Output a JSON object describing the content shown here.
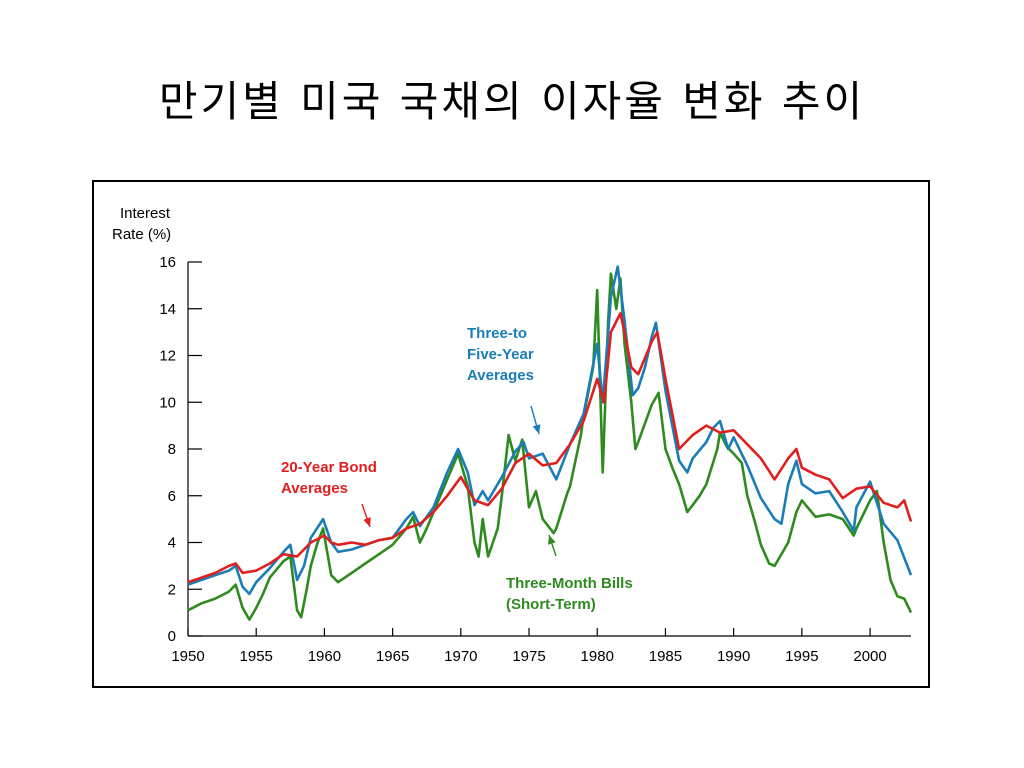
{
  "title": "만기별 미국 국채의 이자율 변화 추이",
  "chart_data": {
    "type": "line",
    "ylabel_lines": [
      "Interest",
      "Rate (%)"
    ],
    "xlabel": "",
    "xlim": [
      1950,
      2003
    ],
    "ylim": [
      0,
      16
    ],
    "x_ticks": [
      1950,
      1955,
      1960,
      1965,
      1970,
      1975,
      1980,
      1985,
      1990,
      1995,
      2000
    ],
    "y_ticks": [
      0,
      2,
      4,
      6,
      8,
      10,
      12,
      14,
      16
    ],
    "grid": false,
    "legend": "inline annotations",
    "series": [
      {
        "name": "Three-Month Bills (Short-Term)",
        "color": "#2e8b1e",
        "annotation_lines": [
          "Three-Month Bills",
          "(Short-Term)"
        ],
        "points": [
          [
            1950,
            1.1
          ],
          [
            1951,
            1.4
          ],
          [
            1952,
            1.6
          ],
          [
            1953,
            1.9
          ],
          [
            1953.5,
            2.2
          ],
          [
            1954,
            1.2
          ],
          [
            1954.5,
            0.7
          ],
          [
            1955,
            1.2
          ],
          [
            1955.5,
            1.8
          ],
          [
            1956,
            2.5
          ],
          [
            1957,
            3.2
          ],
          [
            1957.5,
            3.4
          ],
          [
            1958,
            1.1
          ],
          [
            1958.3,
            0.8
          ],
          [
            1958.7,
            2.0
          ],
          [
            1959,
            3.0
          ],
          [
            1959.5,
            4.0
          ],
          [
            1959.9,
            4.6
          ],
          [
            1960.5,
            2.6
          ],
          [
            1961,
            2.3
          ],
          [
            1962,
            2.7
          ],
          [
            1963,
            3.1
          ],
          [
            1964,
            3.5
          ],
          [
            1965,
            3.9
          ],
          [
            1966,
            4.6
          ],
          [
            1966.5,
            5.1
          ],
          [
            1967,
            4.0
          ],
          [
            1967.5,
            4.6
          ],
          [
            1968,
            5.3
          ],
          [
            1969,
            6.7
          ],
          [
            1969.8,
            7.8
          ],
          [
            1970.5,
            6.4
          ],
          [
            1971,
            4.0
          ],
          [
            1971.3,
            3.4
          ],
          [
            1971.6,
            5.0
          ],
          [
            1972,
            3.4
          ],
          [
            1972.7,
            4.6
          ],
          [
            1973,
            6.0
          ],
          [
            1973.5,
            8.6
          ],
          [
            1974,
            7.5
          ],
          [
            1974.5,
            8.4
          ],
          [
            1975,
            5.5
          ],
          [
            1975.5,
            6.2
          ],
          [
            1976,
            5.0
          ],
          [
            1976.8,
            4.4
          ],
          [
            1977,
            4.6
          ],
          [
            1977.8,
            6.1
          ],
          [
            1978,
            6.4
          ],
          [
            1978.8,
            8.6
          ],
          [
            1979,
            9.4
          ],
          [
            1979.7,
            11.5
          ],
          [
            1980,
            14.8
          ],
          [
            1980.4,
            7.0
          ],
          [
            1980.8,
            13.5
          ],
          [
            1981,
            15.5
          ],
          [
            1981.4,
            14.0
          ],
          [
            1981.7,
            15.3
          ],
          [
            1982,
            12.5
          ],
          [
            1982.5,
            10.0
          ],
          [
            1982.8,
            8.0
          ],
          [
            1983,
            8.3
          ],
          [
            1983.5,
            9.1
          ],
          [
            1984,
            9.9
          ],
          [
            1984.5,
            10.4
          ],
          [
            1985,
            8.0
          ],
          [
            1985.5,
            7.2
          ],
          [
            1986,
            6.5
          ],
          [
            1986.6,
            5.3
          ],
          [
            1987,
            5.6
          ],
          [
            1987.5,
            6.0
          ],
          [
            1988,
            6.5
          ],
          [
            1988.8,
            8.0
          ],
          [
            1989,
            8.7
          ],
          [
            1989.5,
            8.1
          ],
          [
            1990,
            7.8
          ],
          [
            1990.6,
            7.4
          ],
          [
            1991,
            6.0
          ],
          [
            1991.5,
            5.0
          ],
          [
            1992,
            3.9
          ],
          [
            1992.6,
            3.1
          ],
          [
            1993,
            3.0
          ],
          [
            1994,
            4.0
          ],
          [
            1994.6,
            5.3
          ],
          [
            1995,
            5.8
          ],
          [
            1996,
            5.1
          ],
          [
            1997,
            5.2
          ],
          [
            1998,
            5.0
          ],
          [
            1998.8,
            4.3
          ],
          [
            1999,
            4.6
          ],
          [
            2000,
            5.8
          ],
          [
            2000.5,
            6.2
          ],
          [
            2001,
            4.0
          ],
          [
            2001.5,
            2.4
          ],
          [
            2002,
            1.7
          ],
          [
            2002.5,
            1.6
          ],
          [
            2003,
            1.0
          ]
        ]
      },
      {
        "name": "Three-to Five-Year Averages",
        "color": "#1a7db8",
        "annotation_lines": [
          "Three-to",
          "Five-Year",
          "Averages"
        ],
        "points": [
          [
            1950,
            2.2
          ],
          [
            1951,
            2.4
          ],
          [
            1952,
            2.6
          ],
          [
            1953,
            2.8
          ],
          [
            1953.5,
            3.0
          ],
          [
            1954,
            2.1
          ],
          [
            1954.5,
            1.8
          ],
          [
            1955,
            2.3
          ],
          [
            1956,
            2.9
          ],
          [
            1957,
            3.6
          ],
          [
            1957.5,
            3.9
          ],
          [
            1958,
            2.4
          ],
          [
            1958.5,
            3.0
          ],
          [
            1959,
            4.2
          ],
          [
            1959.9,
            5.0
          ],
          [
            1960.5,
            4.0
          ],
          [
            1961,
            3.6
          ],
          [
            1962,
            3.7
          ],
          [
            1963,
            3.9
          ],
          [
            1964,
            4.1
          ],
          [
            1965,
            4.2
          ],
          [
            1966,
            5.0
          ],
          [
            1966.5,
            5.3
          ],
          [
            1967,
            4.7
          ],
          [
            1968,
            5.5
          ],
          [
            1969,
            7.0
          ],
          [
            1969.8,
            8.0
          ],
          [
            1970.5,
            7.0
          ],
          [
            1971,
            5.6
          ],
          [
            1971.6,
            6.2
          ],
          [
            1972,
            5.8
          ],
          [
            1973,
            6.8
          ],
          [
            1974,
            7.9
          ],
          [
            1974.6,
            8.3
          ],
          [
            1975,
            7.6
          ],
          [
            1976,
            7.8
          ],
          [
            1977,
            6.7
          ],
          [
            1978,
            8.2
          ],
          [
            1979,
            9.5
          ],
          [
            1980,
            12.5
          ],
          [
            1980.4,
            10.0
          ],
          [
            1980.8,
            13.0
          ],
          [
            1981,
            14.5
          ],
          [
            1981.5,
            15.8
          ],
          [
            1982,
            13.5
          ],
          [
            1982.6,
            10.3
          ],
          [
            1983,
            10.6
          ],
          [
            1983.5,
            11.5
          ],
          [
            1984,
            12.8
          ],
          [
            1984.3,
            13.4
          ],
          [
            1985,
            10.5
          ],
          [
            1986,
            7.5
          ],
          [
            1986.6,
            7.0
          ],
          [
            1987,
            7.6
          ],
          [
            1988,
            8.3
          ],
          [
            1988.5,
            8.9
          ],
          [
            1989,
            9.2
          ],
          [
            1989.6,
            8.0
          ],
          [
            1990,
            8.5
          ],
          [
            1991,
            7.3
          ],
          [
            1992,
            5.9
          ],
          [
            1993,
            5.0
          ],
          [
            1993.5,
            4.8
          ],
          [
            1994,
            6.5
          ],
          [
            1994.6,
            7.5
          ],
          [
            1995,
            6.5
          ],
          [
            1996,
            6.1
          ],
          [
            1997,
            6.2
          ],
          [
            1998,
            5.3
          ],
          [
            1998.8,
            4.5
          ],
          [
            1999,
            5.5
          ],
          [
            2000,
            6.6
          ],
          [
            2001,
            4.8
          ],
          [
            2002,
            4.1
          ],
          [
            2003,
            2.6
          ]
        ]
      },
      {
        "name": "20-Year Bond Averages",
        "color": "#e0201f",
        "annotation_lines": [
          "20-Year Bond",
          "Averages"
        ],
        "points": [
          [
            1950,
            2.3
          ],
          [
            1951,
            2.5
          ],
          [
            1952,
            2.7
          ],
          [
            1953,
            3.0
          ],
          [
            1953.5,
            3.1
          ],
          [
            1954,
            2.7
          ],
          [
            1955,
            2.8
          ],
          [
            1956,
            3.1
          ],
          [
            1957,
            3.5
          ],
          [
            1958,
            3.4
          ],
          [
            1959,
            4.0
          ],
          [
            1960,
            4.3
          ],
          [
            1960.5,
            4.0
          ],
          [
            1961,
            3.9
          ],
          [
            1962,
            4.0
          ],
          [
            1963,
            3.9
          ],
          [
            1964,
            4.1
          ],
          [
            1965,
            4.2
          ],
          [
            1966,
            4.6
          ],
          [
            1967,
            4.8
          ],
          [
            1968,
            5.3
          ],
          [
            1969,
            6.0
          ],
          [
            1970,
            6.8
          ],
          [
            1970.5,
            6.3
          ],
          [
            1971,
            5.8
          ],
          [
            1972,
            5.6
          ],
          [
            1973,
            6.3
          ],
          [
            1974,
            7.4
          ],
          [
            1975,
            7.8
          ],
          [
            1976,
            7.3
          ],
          [
            1977,
            7.4
          ],
          [
            1978,
            8.2
          ],
          [
            1979,
            9.2
          ],
          [
            1980,
            11.0
          ],
          [
            1980.5,
            10.0
          ],
          [
            1981,
            13.0
          ],
          [
            1981.7,
            13.8
          ],
          [
            1982,
            13.0
          ],
          [
            1982.5,
            11.5
          ],
          [
            1983,
            11.2
          ],
          [
            1984,
            12.6
          ],
          [
            1984.4,
            13.0
          ],
          [
            1985,
            11.0
          ],
          [
            1986,
            8.0
          ],
          [
            1987,
            8.6
          ],
          [
            1988,
            9.0
          ],
          [
            1989,
            8.7
          ],
          [
            1990,
            8.8
          ],
          [
            1991,
            8.2
          ],
          [
            1992,
            7.6
          ],
          [
            1993,
            6.7
          ],
          [
            1994,
            7.6
          ],
          [
            1994.6,
            8.0
          ],
          [
            1995,
            7.2
          ],
          [
            1996,
            6.9
          ],
          [
            1997,
            6.7
          ],
          [
            1998,
            5.9
          ],
          [
            1999,
            6.3
          ],
          [
            2000,
            6.4
          ],
          [
            2001,
            5.7
          ],
          [
            2002,
            5.5
          ],
          [
            2002.5,
            5.8
          ],
          [
            2003,
            4.9
          ]
        ]
      }
    ]
  }
}
